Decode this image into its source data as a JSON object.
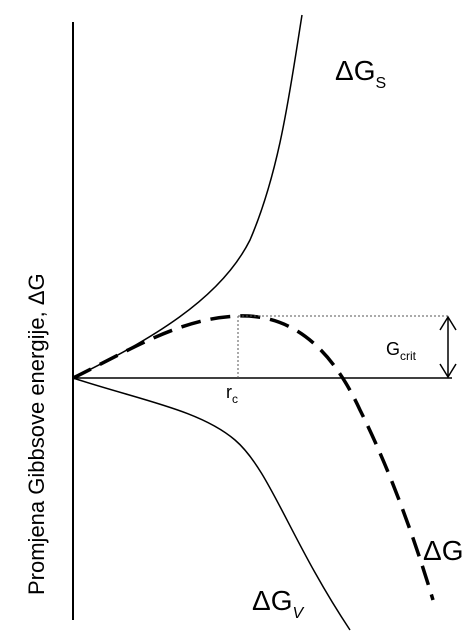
{
  "y_axis_label": "Promjena Gibbsove energije, ΔG",
  "curves": {
    "surface": {
      "label_main": "ΔG",
      "label_sub": "S"
    },
    "volume": {
      "label_main": "ΔG",
      "label_sub": "V"
    },
    "total": {
      "label_main": "ΔG",
      "line_style": "dashed"
    }
  },
  "annotations": {
    "critical_radius": {
      "label_main": "r",
      "label_sub": "c"
    },
    "critical_energy": {
      "label_main": "G",
      "label_sub": "crit"
    }
  },
  "colors": {
    "line": "#000000",
    "background": "#ffffff"
  }
}
